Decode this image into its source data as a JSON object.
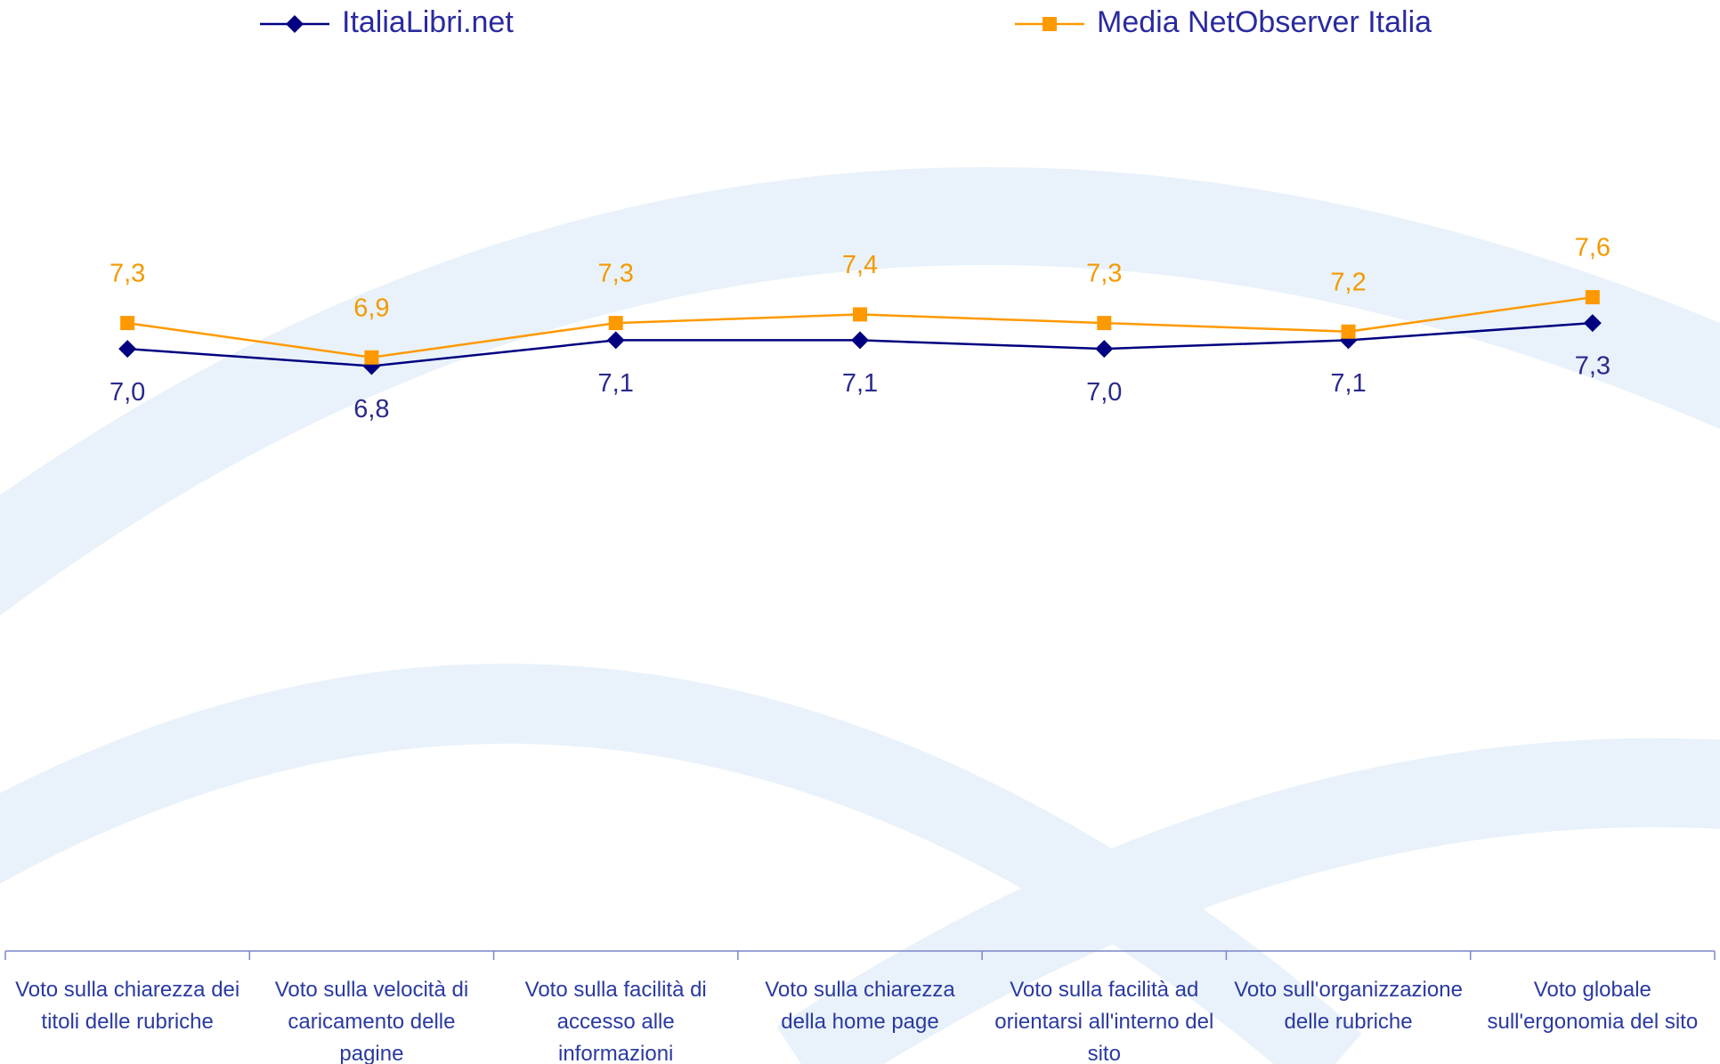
{
  "chart_data": {
    "type": "line",
    "categories": [
      "Voto sulla chiarezza dei titoli delle rubriche",
      "Voto sulla velocità di caricamento delle pagine",
      "Voto sulla facilità di accesso alle informazioni",
      "Voto sulla chiarezza della home page",
      "Voto sulla facilità ad orientarsi all'interno del sito",
      "Voto sull'organizzazione delle rubriche",
      "Voto globale sull'ergonomia del sito"
    ],
    "series": [
      {
        "name": "ItaliaLibri.net",
        "color": "#000080",
        "label_color": "#2a2a8c",
        "marker": "diamond",
        "values": [
          7.0,
          6.8,
          7.1,
          7.1,
          7.0,
          7.1,
          7.3
        ],
        "value_labels": [
          "7,0",
          "6,8",
          "7,1",
          "7,1",
          "7,0",
          "7,1",
          "7,3"
        ]
      },
      {
        "name": "Media NetObserver Italia",
        "color": "#ff9900",
        "label_color": "#f39a00",
        "marker": "square",
        "values": [
          7.3,
          6.9,
          7.3,
          7.4,
          7.3,
          7.2,
          7.6
        ],
        "value_labels": [
          "7,3",
          "6,9",
          "7,3",
          "7,4",
          "7,3",
          "7,2",
          "7,6"
        ]
      }
    ],
    "ylim": [
      0,
      10
    ],
    "grid": false
  }
}
